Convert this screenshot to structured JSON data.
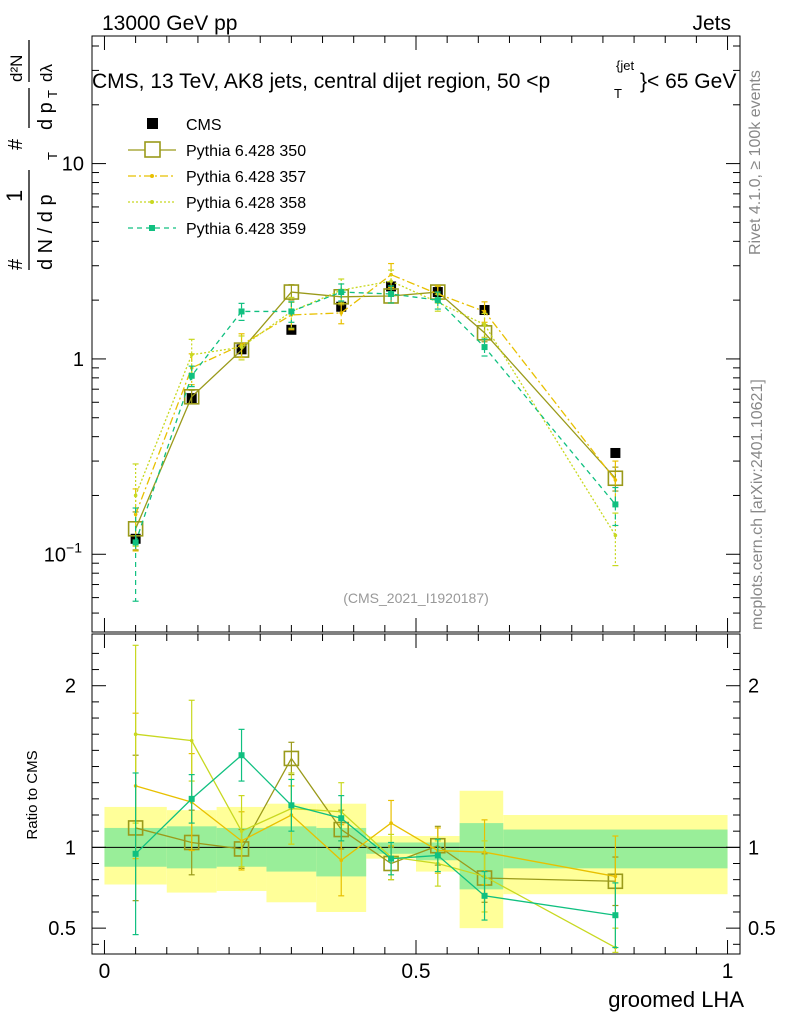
{
  "header": {
    "left": "13000 GeV pp",
    "right": "Jets",
    "title": "CMS, 13 TeV, AK8 jets, central dijet region, 50 <p",
    "title_sup": "{jet",
    "title_sub": "T",
    "title_tail": "}< 65 GeV"
  },
  "side_labels": {
    "rivet": "Rivet 4.1.0, ≥ 100k events",
    "mcplots": "mcplots.cern.ch [arXiv:2401.10621]"
  },
  "analysis_id": "(CMS_2021_I1920187)",
  "colors": {
    "cms": "#000000",
    "p350": "#9a9a1a",
    "p357": "#e8c000",
    "p358": "#c8d820",
    "p359": "#10c080",
    "band_yellow": "#ffff99",
    "band_green": "#99ee99"
  },
  "chart_data": [
    {
      "type": "line",
      "scale": "log",
      "ylabel": "1/N dN/dp_T d²N/dp_T dλ",
      "ylabel_parts": {
        "one": "1",
        "num": "#",
        "den": "d N / d p",
        "sub": "T",
        "num2": "#",
        "den2": "d p",
        "sub2": "T",
        "dn": "d²N",
        "dl": "dλ"
      },
      "ylim": [
        0.04,
        45
      ],
      "yticks": [
        {
          "v": 0.1,
          "base": "10",
          "exp": "−1"
        },
        {
          "v": 1,
          "label": "1"
        },
        {
          "v": 10,
          "label": "10"
        }
      ],
      "x": [
        0.05,
        0.14,
        0.22,
        0.3,
        0.38,
        0.46,
        0.535,
        0.61,
        0.82
      ],
      "legend_position": "top-left",
      "series": [
        {
          "name": "CMS",
          "key": "cms",
          "marker": "square-filled",
          "values": [
            0.12,
            0.63,
            1.12,
            1.41,
            1.85,
            2.35,
            2.2,
            1.78,
            0.33
          ]
        },
        {
          "name": "Pythia 6.428 350",
          "key": "p350",
          "marker": "square-open",
          "dash": "",
          "values": [
            0.135,
            0.64,
            1.11,
            2.2,
            2.08,
            2.1,
            2.2,
            1.36,
            0.245
          ]
        },
        {
          "name": "Pythia 6.428 357",
          "key": "p357",
          "marker": "dot",
          "dash": "8,3,2,3",
          "values": [
            0.16,
            0.9,
            1.18,
            1.68,
            1.72,
            2.7,
            2.15,
            1.75,
            0.24
          ]
        },
        {
          "name": "Pythia 6.428 358",
          "key": "p358",
          "marker": "dot",
          "dash": "2,2",
          "values": [
            0.2,
            1.05,
            1.15,
            1.75,
            2.25,
            2.5,
            1.95,
            1.5,
            0.125
          ]
        },
        {
          "name": "Pythia 6.428 359",
          "key": "p359",
          "marker": "square-small",
          "dash": "5,4",
          "values": [
            0.115,
            0.82,
            1.75,
            1.75,
            2.2,
            2.15,
            2.0,
            1.15,
            0.18
          ]
        }
      ]
    },
    {
      "type": "line",
      "ylabel": "Ratio to CMS",
      "ylim": [
        0.34,
        2.32
      ],
      "yticks": [
        {
          "v": 0.5,
          "label": "0.5"
        },
        {
          "v": 1,
          "label": "1"
        },
        {
          "v": 2,
          "label": "2"
        }
      ],
      "xlabel": "groomed LHA",
      "xlim": [
        -0.02,
        1.02
      ],
      "xticks": [
        {
          "v": 0,
          "label": "0"
        },
        {
          "v": 0.5,
          "label": "0.5"
        },
        {
          "v": 1,
          "label": "1"
        }
      ],
      "bin_edges": [
        0,
        0.1,
        0.18,
        0.26,
        0.34,
        0.42,
        0.5,
        0.57,
        0.64,
        1.0
      ],
      "band_outer": [
        [
          0.77,
          1.25
        ],
        [
          0.72,
          1.23
        ],
        [
          0.73,
          1.25
        ],
        [
          0.66,
          1.27
        ],
        [
          0.6,
          1.27
        ],
        [
          0.93,
          1.07
        ],
        [
          0.85,
          1.07
        ],
        [
          0.5,
          1.35
        ],
        [
          0.71,
          1.2
        ]
      ],
      "band_inner": [
        [
          0.88,
          1.12
        ],
        [
          0.87,
          1.13
        ],
        [
          0.88,
          1.12
        ],
        [
          0.85,
          1.13
        ],
        [
          0.82,
          1.12
        ],
        [
          0.96,
          1.03
        ],
        [
          0.92,
          1.03
        ],
        [
          0.74,
          1.15
        ],
        [
          0.87,
          1.11
        ]
      ],
      "x": [
        0.05,
        0.14,
        0.22,
        0.3,
        0.38,
        0.46,
        0.535,
        0.61,
        0.82
      ],
      "series": [
        {
          "name": "Pythia 6.428 350",
          "key": "p350",
          "values": [
            1.12,
            1.03,
            0.99,
            1.55,
            1.11,
            0.9,
            1.01,
            0.81,
            0.79
          ]
        },
        {
          "name": "Pythia 6.428 357",
          "key": "p357",
          "values": [
            1.38,
            1.28,
            1.04,
            1.2,
            0.92,
            1.15,
            0.98,
            0.97,
            0.82
          ]
        },
        {
          "name": "Pythia 6.428 358",
          "key": "p358",
          "values": [
            1.7,
            1.66,
            1.1,
            1.24,
            1.22,
            0.94,
            0.9,
            0.82,
            0.38
          ]
        },
        {
          "name": "Pythia 6.428 359",
          "key": "p359",
          "values": [
            0.96,
            1.3,
            1.57,
            1.26,
            1.18,
            0.93,
            0.95,
            0.7,
            0.58
          ]
        }
      ]
    }
  ]
}
